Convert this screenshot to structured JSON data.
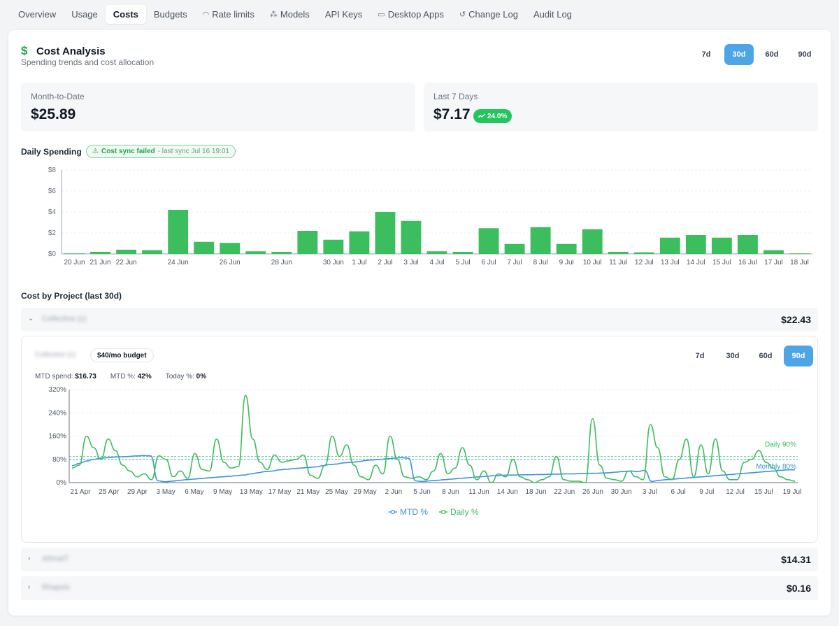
{
  "nav": {
    "tabs": [
      {
        "label": "Overview",
        "icon": ""
      },
      {
        "label": "Usage",
        "icon": ""
      },
      {
        "label": "Costs",
        "icon": "",
        "active": true
      },
      {
        "label": "Budgets",
        "icon": ""
      },
      {
        "label": "Rate limits",
        "icon": "gauge-icon"
      },
      {
        "label": "Models",
        "icon": "models-icon"
      },
      {
        "label": "API Keys",
        "icon": ""
      },
      {
        "label": "Desktop Apps",
        "icon": "monitor-icon"
      },
      {
        "label": "Change Log",
        "icon": "history-icon"
      },
      {
        "label": "Audit Log",
        "icon": ""
      }
    ]
  },
  "header": {
    "icon": "dollar-icon",
    "title": "Cost Analysis",
    "subtitle": "Spending trends and cost allocation",
    "ranges": [
      "7d",
      "30d",
      "60d",
      "90d"
    ],
    "active_range": "30d"
  },
  "cards": {
    "mtd": {
      "label": "Month-to-Date",
      "value": "$25.89"
    },
    "last7": {
      "label": "Last 7 Days",
      "value": "$7.17",
      "trend": "24.0%",
      "trend_icon": "trend-up-icon"
    }
  },
  "daily": {
    "title": "Daily Spending",
    "warning_icon": "warning-icon",
    "warning_strong": "Cost sync failed",
    "warning_rest": " - last sync Jul 16 19:01"
  },
  "projects": {
    "title": "Cost by Project (last 30d)",
    "rows": [
      {
        "name": "Collective (c)",
        "total": "$22.43",
        "expanded": true
      },
      {
        "name": "AthnaIT",
        "total": "$14.31",
        "expanded": false
      },
      {
        "name": "Rhapsis",
        "total": "$0.16",
        "expanded": false
      }
    ],
    "detail": {
      "name": "Collective (c)",
      "budget": "$40/mo budget",
      "ranges": [
        "7d",
        "30d",
        "60d",
        "90d"
      ],
      "active_range": "90d",
      "stats": [
        {
          "label": "MTD spend: ",
          "value": "$16.73"
        },
        {
          "label": "MTD %: ",
          "value": "42%"
        },
        {
          "label": "Today %: ",
          "value": "0%"
        }
      ]
    }
  },
  "chart_data": [
    {
      "type": "bar",
      "title": "Daily Spending",
      "categories": [
        "20 Jun",
        "21 Jun",
        "22 Jun",
        "23 Jun",
        "24 Jun",
        "25 Jun",
        "26 Jun",
        "27 Jun",
        "28 Jun",
        "29 Jun",
        "30 Jun",
        "1 Jul",
        "2 Jul",
        "3 Jul",
        "4 Jul",
        "5 Jul",
        "6 Jul",
        "7 Jul",
        "8 Jul",
        "9 Jul",
        "10 Jul",
        "11 Jul",
        "12 Jul",
        "13 Jul",
        "14 Jul",
        "15 Jul",
        "16 Jul",
        "17 Jul",
        "18 Jul"
      ],
      "tick_labels": [
        "20 Jun",
        "21 Jun",
        "22 Jun",
        "",
        "24 Jun",
        "",
        "26 Jun",
        "",
        "28 Jun",
        "",
        "30 Jun",
        "1 Jul",
        "2 Jul",
        "3 Jul",
        "4 Jul",
        "5 Jul",
        "6 Jul",
        "7 Jul",
        "8 Jul",
        "9 Jul",
        "10 Jul",
        "11 Jul",
        "12 Jul",
        "13 Jul",
        "14 Jul",
        "15 Jul",
        "16 Jul",
        "17 Jul",
        "18 Jul"
      ],
      "values": [
        0.05,
        0.2,
        0.4,
        0.35,
        4.2,
        1.15,
        1.05,
        0.25,
        0.2,
        2.2,
        1.35,
        2.15,
        4.0,
        3.15,
        0.25,
        0.2,
        2.45,
        0.95,
        2.55,
        0.95,
        2.35,
        0.2,
        0.15,
        1.55,
        1.8,
        1.55,
        1.8,
        0.35,
        0.05
      ],
      "yticks": [
        "$0",
        "$2",
        "$4",
        "$6",
        "$8"
      ],
      "ylim": [
        0,
        8
      ],
      "color": "#3dbe5e"
    },
    {
      "type": "line",
      "x_labels": [
        "21 Apr",
        "25 Apr",
        "29 Apr",
        "3 May",
        "6 May",
        "9 May",
        "13 May",
        "17 May",
        "21 May",
        "25 May",
        "29 May",
        "2 Jun",
        "5 Jun",
        "8 Jun",
        "11 Jun",
        "14 Jun",
        "18 Jun",
        "22 Jun",
        "26 Jun",
        "30 Jun",
        "3 Jul",
        "6 Jul",
        "9 Jul",
        "12 Jul",
        "15 Jul",
        "19 Jul"
      ],
      "yticks": [
        "0%",
        "80%",
        "160%",
        "240%",
        "320%"
      ],
      "ylim": [
        0,
        320
      ],
      "series": [
        {
          "name": "MTD %",
          "color": "#3b93dd",
          "values": [
            58,
            66,
            74,
            80,
            84,
            86,
            88,
            89,
            90,
            92,
            93,
            92,
            6,
            3,
            5,
            8,
            10,
            12,
            14,
            16,
            18,
            20,
            22,
            24,
            26,
            30,
            34,
            38,
            40,
            44,
            46,
            48,
            50,
            52,
            54,
            58,
            62,
            64,
            68,
            70,
            72,
            76,
            78,
            80,
            82,
            84,
            86,
            84,
            6,
            4,
            6,
            8,
            10,
            12,
            14,
            16,
            18,
            20,
            22,
            24,
            25,
            26,
            26,
            27,
            27,
            28,
            28,
            29,
            29,
            30,
            30,
            31,
            32,
            32,
            33,
            34,
            36,
            38,
            40,
            38,
            42,
            4,
            8,
            10,
            12,
            14,
            16,
            18,
            20,
            22,
            24,
            26,
            28,
            30,
            32,
            34,
            36,
            38,
            40,
            42,
            44,
            44
          ]
        },
        {
          "name": "Daily %",
          "color": "#3dbe5e",
          "values": [
            50,
            60,
            160,
            120,
            80,
            150,
            110,
            60,
            40,
            20,
            30,
            10,
            92,
            80,
            20,
            40,
            15,
            100,
            45,
            40,
            150,
            70,
            50,
            55,
            300,
            150,
            70,
            45,
            95,
            70,
            75,
            80,
            95,
            25,
            15,
            60,
            160,
            90,
            130,
            60,
            20,
            10,
            60,
            30,
            160,
            80,
            20,
            15,
            20,
            10,
            40,
            100,
            30,
            50,
            120,
            60,
            10,
            40,
            0,
            30,
            20,
            80,
            20,
            10,
            0,
            10,
            20,
            90,
            10,
            5,
            5,
            0,
            220,
            60,
            15,
            10,
            5,
            40,
            20,
            10,
            200,
            120,
            20,
            10,
            80,
            150,
            20,
            130,
            30,
            150,
            40,
            10,
            10,
            70,
            80,
            110,
            70,
            50,
            20,
            10,
            5
          ]
        }
      ],
      "reference_lines": [
        {
          "name": "Daily 90%",
          "value": 90,
          "color": "#3dbe5e"
        },
        {
          "name": "Monthly 80%",
          "value": 80,
          "color": "#3b93dd"
        }
      ],
      "legend": "bottom"
    }
  ]
}
